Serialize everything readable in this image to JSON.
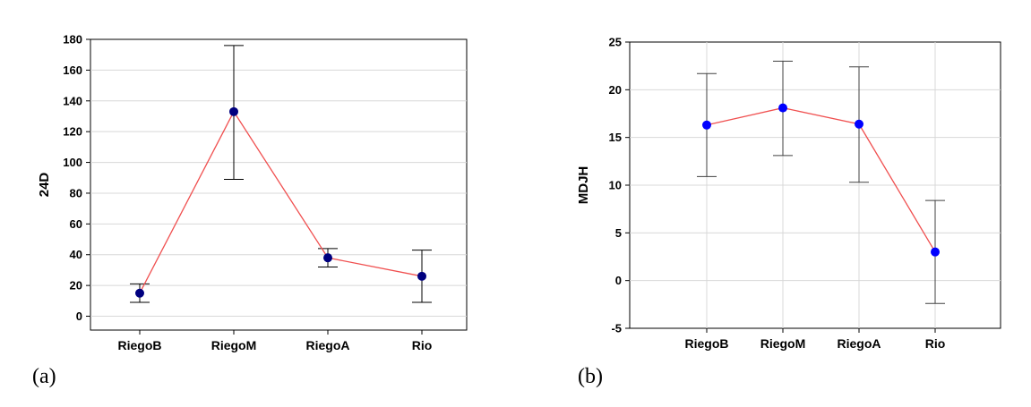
{
  "chart_data": [
    {
      "type": "line",
      "panel_label": "(a)",
      "categories": [
        "RiegoB",
        "RiegoM",
        "RiegoA",
        "Rio"
      ],
      "values": [
        15,
        133,
        38,
        26
      ],
      "error_low": [
        9,
        89,
        32,
        9
      ],
      "error_high": [
        21,
        176,
        44,
        43
      ],
      "ylabel": "24D",
      "ylim": [
        -9,
        180
      ],
      "yticks": [
        0,
        20,
        40,
        60,
        80,
        100,
        120,
        140,
        160,
        180
      ],
      "grid": "horizontal",
      "line_color": "#f05050",
      "marker_color": "#00007f",
      "errorbar_color": "#000000"
    },
    {
      "type": "line",
      "panel_label": "(b)",
      "categories": [
        "RiegoB",
        "RiegoM",
        "RiegoA",
        "Rio"
      ],
      "values": [
        16.3,
        18.1,
        16.4,
        3.0
      ],
      "error_low": [
        10.9,
        13.1,
        10.3,
        -2.4
      ],
      "error_high": [
        21.7,
        23.0,
        22.4,
        8.4
      ],
      "ylabel": "MDJH",
      "ylim": [
        -5,
        25
      ],
      "yticks": [
        -5,
        0,
        5,
        10,
        15,
        20,
        25
      ],
      "grid": "both",
      "line_color": "#f05050",
      "marker_color": "#0000ff",
      "errorbar_color": "#404040"
    }
  ]
}
